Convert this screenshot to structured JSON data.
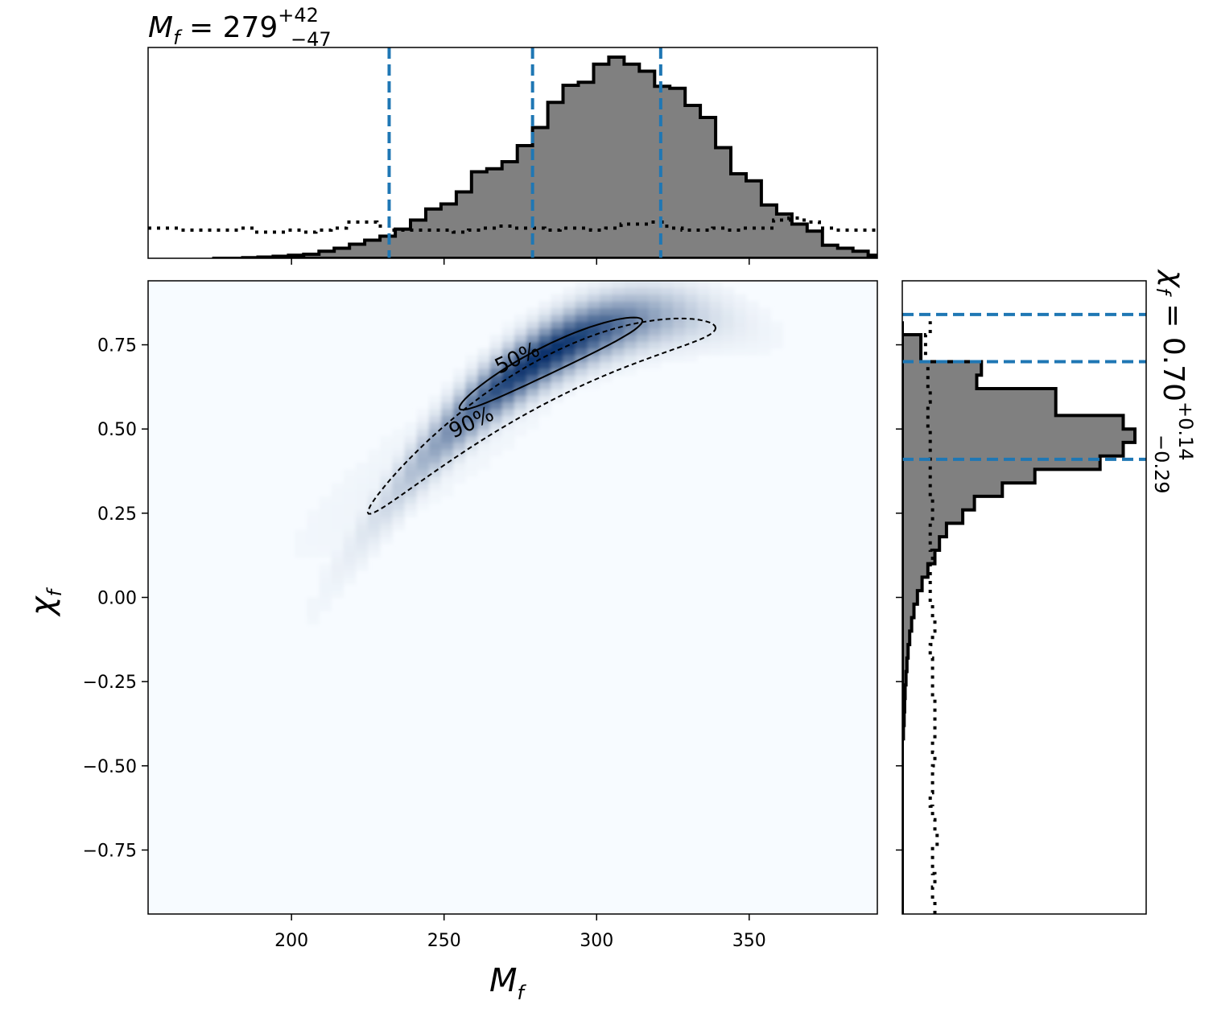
{
  "chart_data": {
    "type": "corner",
    "title_top": {
      "var": "M",
      "sub": "f",
      "eq": " = 279",
      "sup": "+42",
      "low": "−47"
    },
    "title_right": {
      "var": "χ",
      "sub": "f",
      "eq": " = 0.70",
      "sup": "+0.14",
      "low": "−0.29"
    },
    "xlabel": {
      "var": "M",
      "sub": "f"
    },
    "ylabel": {
      "var": "χ",
      "sub": "f"
    },
    "xlim": [
      153,
      392
    ],
    "ylim": [
      -0.94,
      0.94
    ],
    "xticks": [
      200,
      250,
      300,
      350
    ],
    "xtick_labels": [
      "200",
      "250",
      "300",
      "350"
    ],
    "yticks": [
      0.75,
      0.5,
      0.25,
      0.0,
      -0.25,
      -0.5,
      -0.75
    ],
    "ytick_labels": [
      "0.75",
      "0.50",
      "0.25",
      "0.00",
      "−0.25",
      "−0.50",
      "−0.75"
    ],
    "contour_levels": [
      {
        "label": "50%",
        "style": "solid"
      },
      {
        "label": "90%",
        "style": "dashed"
      }
    ],
    "x_quantiles": [
      232,
      279,
      321
    ],
    "y_quantiles": [
      0.41,
      0.7,
      0.84
    ],
    "colors": {
      "density": "#08306b",
      "quantile": "#1f77b4",
      "hist_fill": "#808080",
      "edge": "#000000"
    },
    "x_hist": {
      "bin_start": 174,
      "bin_width": 5,
      "counts": [
        0,
        0,
        0.3,
        0.6,
        1.0,
        1.5,
        2.0,
        3.5,
        5.0,
        7.0,
        9.0,
        11.0,
        14.5,
        19.0,
        24.5,
        27.0,
        33.0,
        43.0,
        44.5,
        48.0,
        56.0,
        65.0,
        77.5,
        86.0,
        87.5,
        96.5,
        100.0,
        96.5,
        93.0,
        85.5,
        84.5,
        76.0,
        70.0,
        55.0,
        42.0,
        38.5,
        26.5,
        22.0,
        17.0,
        13.5,
        6.5,
        5.0,
        3.5,
        1.5,
        0.3,
        0.3,
        0.2,
        0,
        0,
        0,
        0,
        0,
        0,
        0
      ]
    },
    "x_prior": {
      "bin_start": 153,
      "bin_width": 5,
      "counts": [
        15,
        15,
        14,
        14,
        14,
        14,
        15,
        13,
        13,
        14,
        13,
        14,
        15,
        18,
        18,
        16,
        14,
        14,
        14,
        14,
        13,
        14,
        15,
        16,
        15,
        15,
        14,
        15,
        15,
        14,
        15,
        17,
        17,
        18,
        15,
        14,
        14,
        15,
        14,
        15,
        15,
        19,
        20,
        18,
        15,
        14,
        14,
        14,
        15,
        14,
        15,
        17
      ]
    },
    "y_hist": {
      "bin_start": -0.94,
      "bin_width": 0.04,
      "counts": [
        0,
        0,
        0,
        0,
        0,
        0,
        0,
        0,
        0,
        0,
        0,
        0,
        0,
        0.5,
        0.8,
        1.0,
        1.2,
        1.6,
        2.0,
        2.5,
        3.2,
        4.0,
        5.0,
        6.5,
        8.5,
        11.0,
        14.0,
        16.0,
        19.0,
        26.0,
        31.0,
        43.0,
        57.0,
        85.0,
        95.0,
        100.0,
        95.0,
        66.0,
        66.0,
        32.0,
        34.0,
        8.0,
        8.0,
        0
      ]
    },
    "y_prior": {
      "bin_start": -0.94,
      "bin_width": 0.04,
      "counts": [
        14,
        13,
        14,
        13,
        13,
        15,
        14,
        13,
        12,
        13,
        13,
        14,
        13,
        14,
        14,
        14,
        13,
        13,
        13,
        12,
        13,
        14,
        13,
        12,
        12,
        12,
        13,
        12,
        12,
        13,
        13,
        12,
        12,
        12,
        12,
        12,
        11,
        11,
        12,
        11,
        11,
        10,
        10,
        12
      ]
    }
  }
}
